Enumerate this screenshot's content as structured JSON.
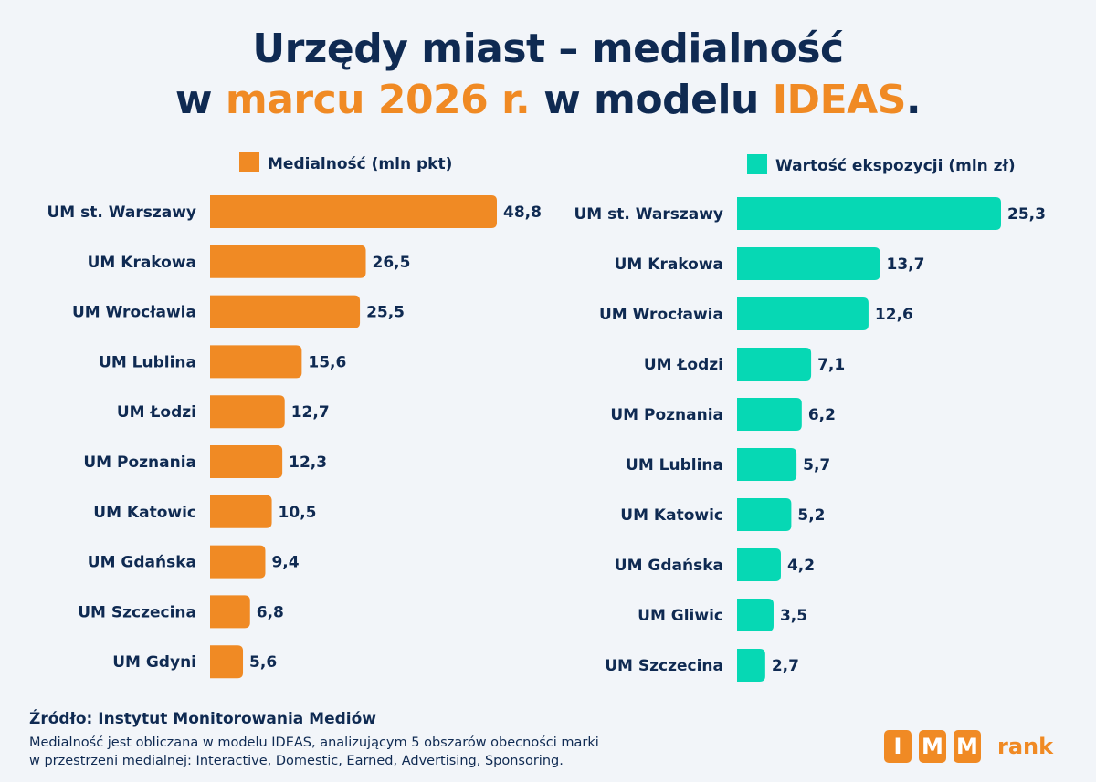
{
  "title": {
    "line1": "Urzędy miast – medialność",
    "line2_prefix": "w ",
    "line2_highlight1": "marcu 2026 r.",
    "line2_middle": " w modelu ",
    "line2_highlight2": "IDEAS",
    "line2_suffix": "."
  },
  "colors": {
    "navy": "#0f2a52",
    "orange": "#f08a24",
    "teal": "#06d8b4",
    "background": "#f2f5f9"
  },
  "chart_data": [
    {
      "type": "bar",
      "orientation": "horizontal",
      "legend": "Medialność (mln pkt)",
      "color": "#f08a24",
      "categories": [
        "UM st. Warszawy",
        "UM Krakowa",
        "UM Wrocławia",
        "UM Lublina",
        "UM Łodzi",
        "UM Poznania",
        "UM Katowic",
        "UM Gdańska",
        "UM Szczecina",
        "UM Gdyni"
      ],
      "values": [
        48.8,
        26.5,
        25.5,
        15.6,
        12.7,
        12.3,
        10.5,
        9.4,
        6.8,
        5.6
      ],
      "value_labels": [
        "48,8",
        "26,5",
        "25,5",
        "15,6",
        "12,7",
        "12,3",
        "10,5",
        "9,4",
        "6,8",
        "5,6"
      ]
    },
    {
      "type": "bar",
      "orientation": "horizontal",
      "legend": "Wartość ekspozycji (mln zł)",
      "color": "#06d8b4",
      "categories": [
        "UM st. Warszawy",
        "UM Krakowa",
        "UM Wrocławia",
        "UM Łodzi",
        "UM Poznania",
        "UM Lublina",
        "UM Katowic",
        "UM Gdańska",
        "UM Gliwic",
        "UM Szczecina"
      ],
      "values": [
        25.3,
        13.7,
        12.6,
        7.1,
        6.2,
        5.7,
        5.2,
        4.2,
        3.5,
        2.7
      ],
      "value_labels": [
        "25,3",
        "13,7",
        "12,6",
        "7,1",
        "6,2",
        "5,7",
        "5,2",
        "4,2",
        "3,5",
        "2,7"
      ]
    }
  ],
  "footer": {
    "source": "Źródło: Instytut Monitorowania Mediów",
    "note_line1": "Medialność jest obliczana w modelu IDEAS, analizującym 5 obszarów obecności marki",
    "note_line2": "w przestrzeni medialnej: Interactive, Domestic, Earned, Advertising, Sponsoring."
  },
  "logo": {
    "letters": [
      "I",
      "M",
      "M"
    ],
    "word": "rank"
  }
}
